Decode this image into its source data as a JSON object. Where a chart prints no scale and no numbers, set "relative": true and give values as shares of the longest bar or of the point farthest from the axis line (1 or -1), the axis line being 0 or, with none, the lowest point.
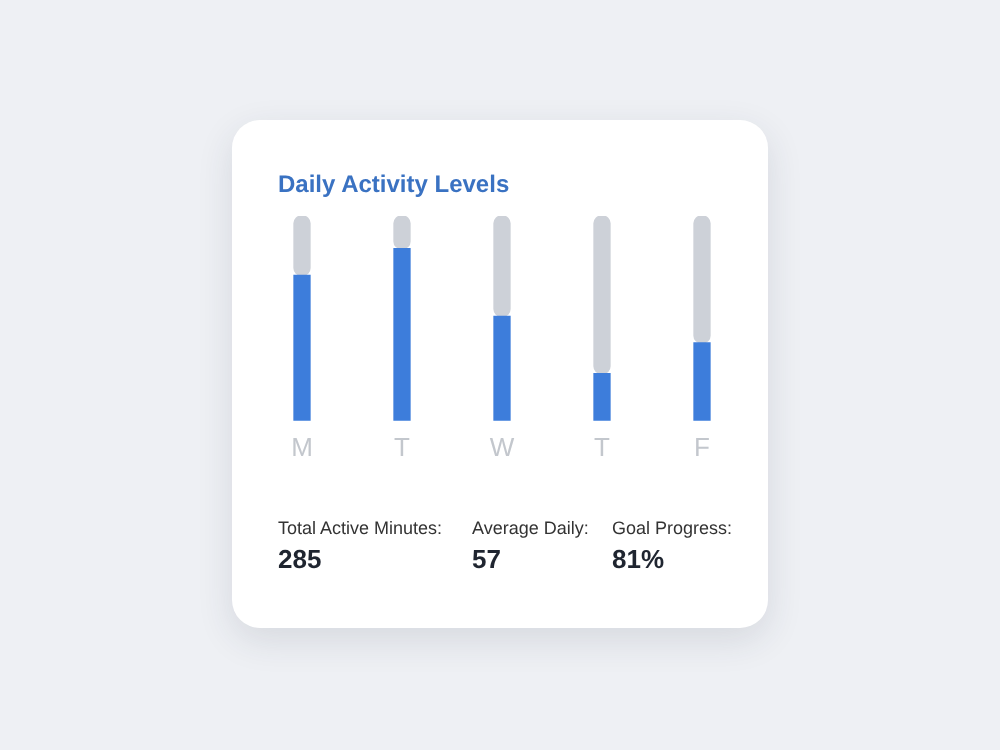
{
  "chart_data": {
    "type": "bar",
    "title": "Daily Activity Levels",
    "relative": true,
    "categories": [
      "M",
      "T",
      "W",
      "T",
      "F"
    ],
    "series": [
      {
        "color": "#3d7ddb",
        "values": [
          0.71,
          0.84,
          0.51,
          0.23,
          0.38
        ]
      },
      {
        "color": "#cdd1d8",
        "values": [
          0.29,
          0.16,
          0.49,
          0.77,
          0.62
        ]
      }
    ],
    "stacked": true,
    "annotations": [
      "Total Active Minutes:",
      "285",
      "Average Daily:",
      "57",
      "Goal Progress:",
      "81%"
    ],
    "grid": false,
    "legend": false
  }
}
